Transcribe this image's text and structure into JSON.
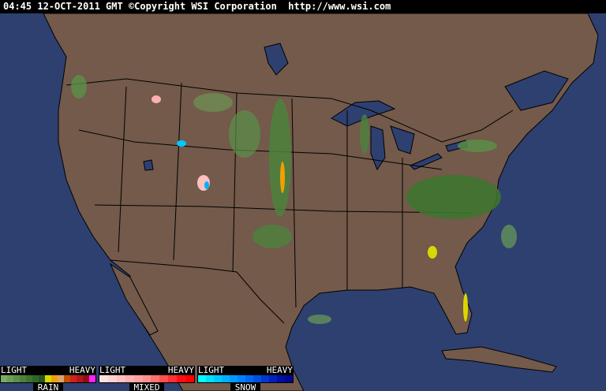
{
  "header": {
    "timestamp": "04:45 12-OCT-2011 GMT",
    "copyright": "©Copyright WSI Corporation",
    "url": "http://www.wsi.com"
  },
  "colors": {
    "land": "#735a4a",
    "ocean": "#2e4070",
    "borders": "#000000"
  },
  "legend": [
    {
      "name": "RAIN",
      "light": "LIGHT",
      "heavy": "HEAVY",
      "colors": [
        "#7aab62",
        "#6a9e55",
        "#5a9048",
        "#4c823c",
        "#3e7430",
        "#306626",
        "#22581c",
        "#d8d800",
        "#f0a000",
        "#e0a070",
        "#c05000",
        "#d02020",
        "#b01818",
        "#901010",
        "#ff20ff"
      ]
    },
    {
      "name": "MIXED",
      "light": "LIGHT",
      "heavy": "HEAVY",
      "colors": [
        "#ffe0e0",
        "#ffd0d0",
        "#ffc0c0",
        "#ffb0b0",
        "#ffa0a0",
        "#ff9090",
        "#ff7070",
        "#ff5050",
        "#ff3030",
        "#ff1010",
        "#ff0000"
      ]
    },
    {
      "name": "SNOW",
      "light": "LIGHT",
      "heavy": "HEAVY",
      "colors": [
        "#00ffff",
        "#00e0ff",
        "#00c8ff",
        "#00b0ff",
        "#0098ff",
        "#0080ff",
        "#0068f0",
        "#0050e0",
        "#0038d0",
        "#0020c0",
        "#0010a0",
        "#000890"
      ]
    }
  ]
}
